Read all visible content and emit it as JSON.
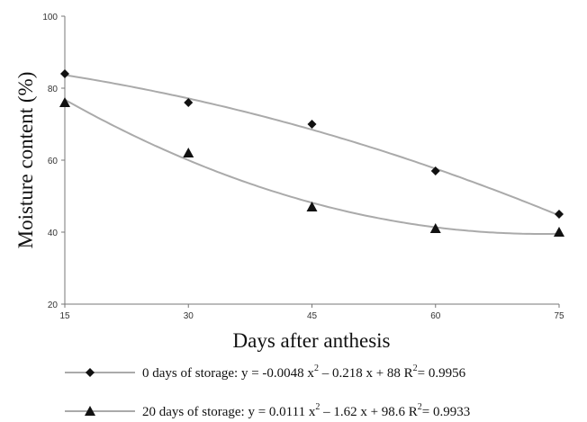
{
  "chart_data": {
    "type": "line",
    "xlabel": "Days after anthesis",
    "ylabel": "Moisture content (%)",
    "xlim": [
      15,
      75
    ],
    "ylim": [
      20,
      100
    ],
    "x_ticks": [
      "15",
      "30",
      "45",
      "60",
      "75"
    ],
    "y_ticks": [
      "20",
      "40",
      "60",
      "80",
      "100"
    ],
    "grid": false,
    "legend_position": "bottom",
    "x": [
      15,
      30,
      45,
      60,
      75
    ],
    "series": [
      {
        "name": "0 days of storage",
        "marker": "diamond",
        "values": [
          84,
          76,
          70,
          57,
          45
        ],
        "equation": {
          "prefix": "0 days of storage: y = -0.0048 x",
          "sup": "2",
          "middle": " – 0.218 x + 88 R",
          "sup2": "2",
          "suffix": "= 0.9956"
        },
        "fit": [
          -0.0048,
          -0.218,
          88
        ]
      },
      {
        "name": "20 days of storage",
        "marker": "triangle",
        "values": [
          76,
          62,
          47,
          41,
          40
        ],
        "equation": {
          "prefix": "20 days of storage: y = 0.0111 x",
          "sup": "2",
          "middle": " – 1.62 x + 98.6 R",
          "sup2": "2",
          "suffix": "= 0.9933"
        },
        "fit": [
          0.0111,
          -1.62,
          98.6
        ]
      }
    ],
    "colors": {
      "axis": "#777777",
      "curve": "#aaaaaa",
      "marker": "#111111"
    }
  }
}
